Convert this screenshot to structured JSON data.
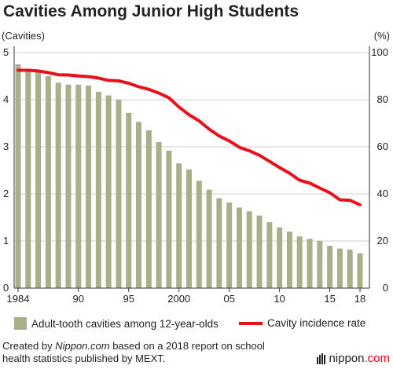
{
  "title": "Cavities Among Junior High Students",
  "y_left_unit": "(Cavities)",
  "y_right_unit": "(%)",
  "legend": {
    "bars": "Adult-tooth cavities among 12-year-olds",
    "line": "Cavity incidence rate"
  },
  "source": {
    "prefix": "Created by ",
    "site": "Nippon.com",
    "suffix": " based on a 2018 report on school health statistics published by MEXT."
  },
  "brand": {
    "name": "nippon",
    "suffix": ".com"
  },
  "colors": {
    "bar": "#a8b089",
    "line": "#e8101b",
    "grid": "#cfcfcf",
    "axis": "#333333"
  },
  "chart_data": {
    "type": "bar",
    "title": "Cavities Among Junior High Students",
    "x": [
      1984,
      1985,
      1986,
      1987,
      1988,
      1989,
      1990,
      1991,
      1992,
      1993,
      1994,
      1995,
      1996,
      1997,
      1998,
      1999,
      2000,
      2001,
      2002,
      2003,
      2004,
      2005,
      2006,
      2007,
      2008,
      2009,
      2010,
      2011,
      2012,
      2013,
      2014,
      2015,
      2016,
      2017,
      2018
    ],
    "x_tick_labels": [
      "1984",
      "90",
      "95",
      "2000",
      "05",
      "10",
      "15",
      "18"
    ],
    "x_tick_years": [
      1984,
      1990,
      1995,
      2000,
      2005,
      2010,
      2015,
      2018
    ],
    "y_left": {
      "label": "(Cavities)",
      "ylim": [
        0,
        5
      ],
      "ticks": [
        0,
        1,
        2,
        3,
        4,
        5
      ]
    },
    "y_right": {
      "label": "(%)",
      "ylim": [
        0,
        100
      ],
      "ticks": [
        0,
        20,
        40,
        60,
        80,
        100
      ]
    },
    "grid": true,
    "legend_position": "bottom",
    "series": [
      {
        "name": "Adult-tooth cavities among 12-year-olds",
        "type": "bar",
        "axis": "left",
        "values": [
          4.75,
          4.63,
          4.6,
          4.5,
          4.36,
          4.32,
          4.32,
          4.3,
          4.17,
          4.09,
          4.0,
          3.72,
          3.53,
          3.35,
          3.1,
          2.92,
          2.65,
          2.52,
          2.28,
          2.09,
          1.91,
          1.82,
          1.71,
          1.63,
          1.54,
          1.4,
          1.29,
          1.2,
          1.1,
          1.05,
          1.0,
          0.9,
          0.84,
          0.82,
          0.74
        ]
      },
      {
        "name": "Cavity incidence rate",
        "type": "line",
        "axis": "right",
        "values": [
          92.5,
          92.5,
          92.2,
          91.5,
          90.6,
          90.5,
          90.1,
          89.8,
          89.2,
          88.2,
          88.0,
          87.0,
          85.5,
          84.4,
          82.8,
          80.8,
          76.9,
          73.6,
          71.0,
          67.5,
          64.6,
          62.5,
          59.8,
          58.3,
          56.4,
          53.8,
          51.2,
          48.8,
          45.8,
          44.6,
          42.5,
          40.5,
          37.5,
          37.3,
          35.4
        ]
      }
    ]
  }
}
